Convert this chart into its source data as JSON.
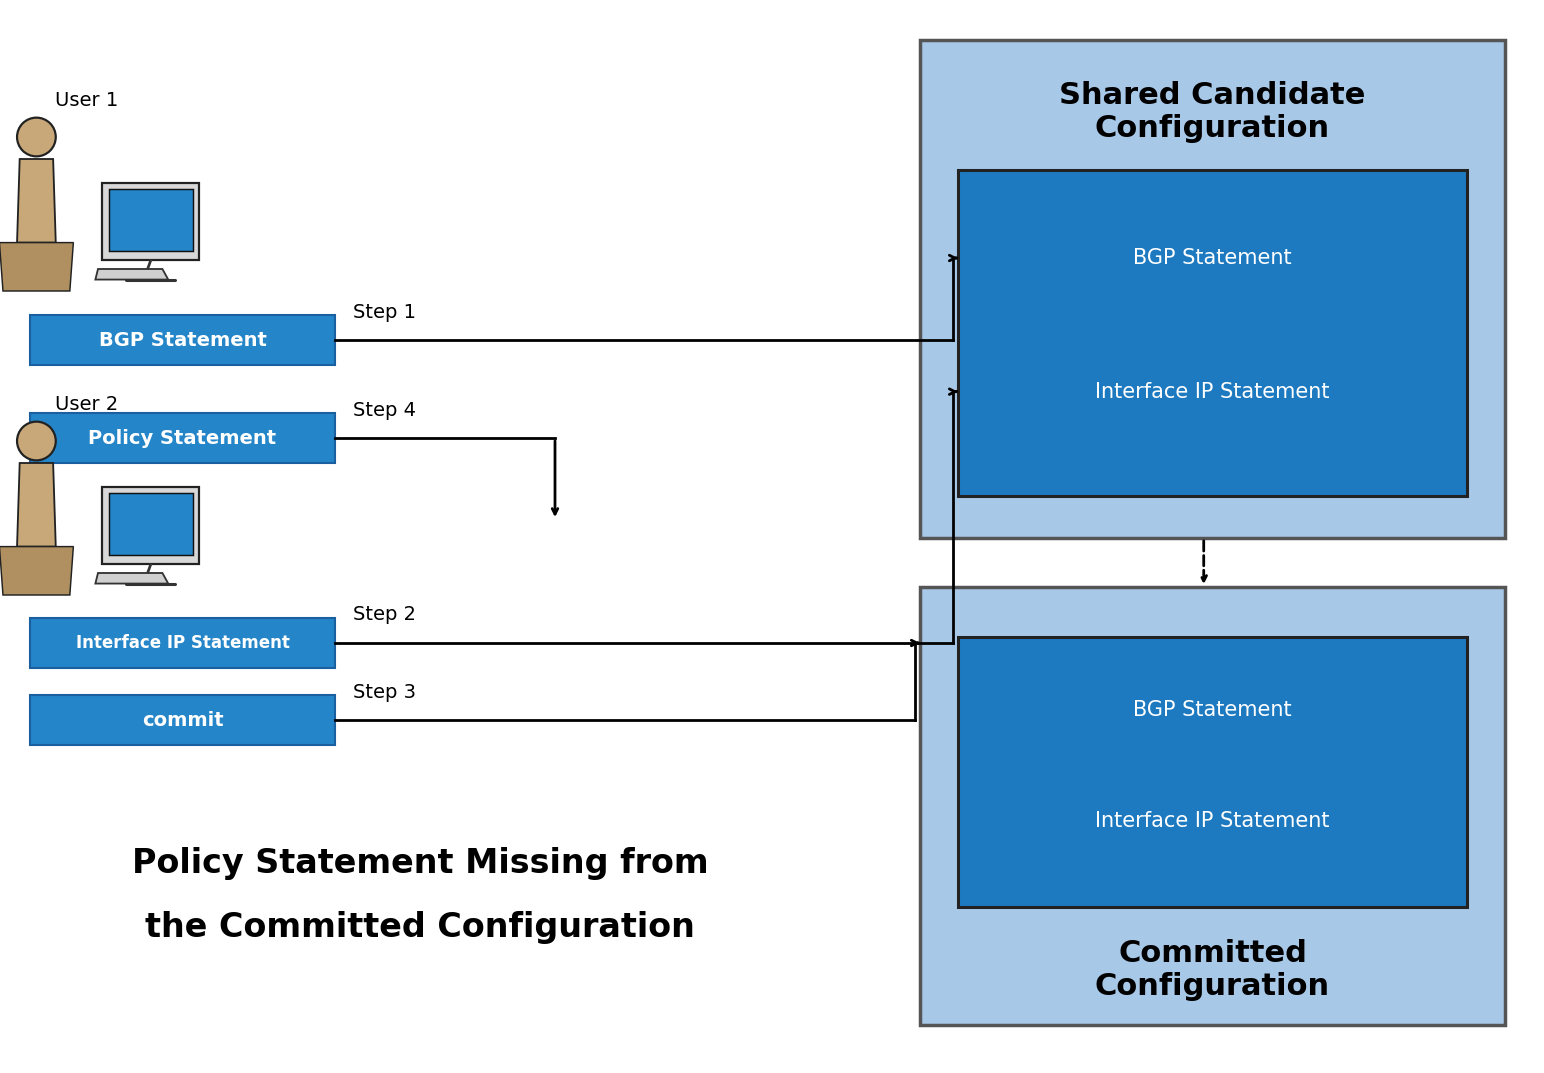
{
  "bg_color": "#ffffff",
  "blue_dark": "#1e7ac0",
  "blue_medium": "#2485c8",
  "blue_light": "#a8c8e8",
  "text_white": "#ffffff",
  "text_black": "#000000",
  "user1_label": "User 1",
  "user2_label": "User 2",
  "btn_bgp": "BGP Statement",
  "btn_policy": "Policy Statement",
  "btn_interface": "Interface IP Statement",
  "btn_commit": "commit",
  "step1_label": "Step 1",
  "step2_label": "Step 2",
  "step3_label": "Step 3",
  "step4_label": "Step 4",
  "shared_title": "Shared Candidate\nConfiguration",
  "committed_title": "Committed\nConfiguration",
  "inner_shared_bgp": "BGP Statement",
  "inner_shared_iface": "Interface IP Statement",
  "inner_committed_bgp": "BGP Statement",
  "inner_committed_iface": "Interface IP Statement",
  "bottom_text_line1": "Policy Statement Missing from",
  "bottom_text_line2": "the Committed Configuration",
  "figsize": [
    15.44,
    10.73
  ],
  "dpi": 100
}
